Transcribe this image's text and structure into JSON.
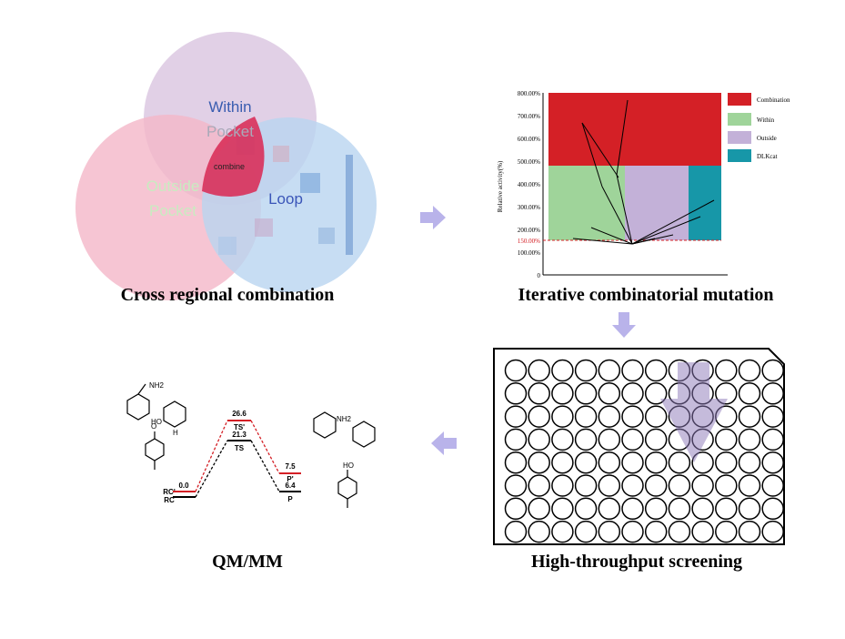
{
  "venn": {
    "title": "Cross regional combination",
    "within": [
      "Within",
      "Pocket"
    ],
    "outside": [
      "Outside",
      "Pocket"
    ],
    "loop": "Loop",
    "center": "combine"
  },
  "mutation": {
    "title": "Iterative combinatorial mutation",
    "y_label": "Relative activity(%)",
    "yticks": [
      "800.00%",
      "700.00%",
      "600.00%",
      "500.00%",
      "400.00%",
      "300.00%",
      "200.00%",
      "100.00%",
      "0"
    ],
    "threshold": "150.00%",
    "legend": [
      "Combination",
      "Within",
      "Outside",
      "DLKcat"
    ]
  },
  "screening": {
    "title": "High-throughput screening"
  },
  "qmmm": {
    "title": "QM/MM",
    "levels": {
      "ts_prime": "26.6",
      "ts_prime_label": "TS'",
      "ts": "21.3",
      "ts_label": "TS",
      "rc": "0.0",
      "rc_prime_label": "RC'",
      "rc_label": "RC",
      "p_prime": "7.5",
      "p_prime_label": "P'",
      "p": "6.4",
      "p_label": "P"
    },
    "chem": [
      "NH2",
      "HO",
      "H",
      "O"
    ]
  }
}
